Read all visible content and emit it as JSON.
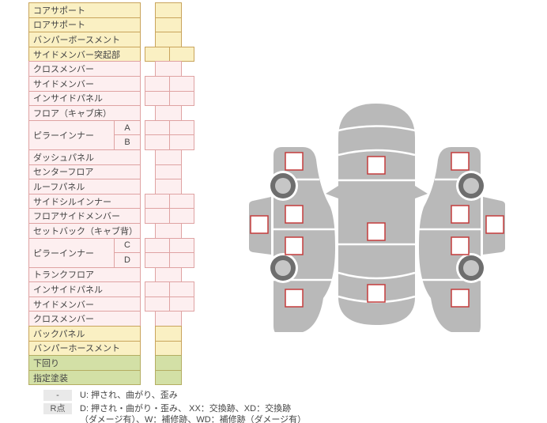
{
  "table": {
    "rows": [
      {
        "label": "コアサポート",
        "type": "yellow",
        "cells": "single"
      },
      {
        "label": "ロアサポート",
        "type": "yellow",
        "cells": "single"
      },
      {
        "label": "バンパーボースメント",
        "type": "yellow",
        "cells": "single"
      },
      {
        "label": "サイドメンバー突起部",
        "type": "yellow",
        "cells": "double"
      },
      {
        "label": "クロスメンバー",
        "type": "pink",
        "cells": "single"
      },
      {
        "label": "サイドメンバー",
        "type": "pink",
        "cells": "double"
      },
      {
        "label": "インサイドパネル",
        "type": "pink",
        "cells": "double"
      },
      {
        "label": "フロア（キャブ床）",
        "type": "pink",
        "cells": "single"
      },
      {
        "label": "ピラーインナー",
        "type": "pink",
        "cells": "double",
        "sub_rows": [
          "A",
          "B"
        ]
      },
      {
        "label": "ダッシュパネル",
        "type": "pink",
        "cells": "single"
      },
      {
        "label": "センターフロア",
        "type": "pink",
        "cells": "single"
      },
      {
        "label": "ルーフパネル",
        "type": "pink",
        "cells": "single"
      },
      {
        "label": "サイドシルインナー",
        "type": "pink",
        "cells": "double"
      },
      {
        "label": "フロアサイドメンバー",
        "type": "pink",
        "cells": "double"
      },
      {
        "label": "セットバック（キャブ背）",
        "type": "pink",
        "cells": "single"
      },
      {
        "label": "ピラーインナー",
        "type": "pink",
        "cells": "double",
        "sub_rows": [
          "C",
          "D"
        ]
      },
      {
        "label": "トランクフロア",
        "type": "pink",
        "cells": "single"
      },
      {
        "label": "インサイドパネル",
        "type": "pink",
        "cells": "double"
      },
      {
        "label": "サイドメンバー",
        "type": "pink",
        "cells": "double"
      },
      {
        "label": "クロスメンバー",
        "type": "pink",
        "cells": "single"
      },
      {
        "label": "バックパネル",
        "type": "yellow",
        "cells": "single"
      },
      {
        "label": "バンパーホースメント",
        "type": "yellow",
        "cells": "single"
      },
      {
        "label": "下回り",
        "type": "green",
        "cells": "single"
      },
      {
        "label": "指定塗装",
        "type": "green",
        "cells": "single"
      }
    ]
  },
  "legend": {
    "items": [
      {
        "badge": "-",
        "lines": [
          "U: 押され、曲がり、歪み"
        ]
      },
      {
        "badge": "R点",
        "lines": [
          "D: 押され・曲がり・歪み、 XX：交換跡、XD：交換跡",
          "（ダメージ有）、W：補修跡、WD：補修跡（ダメージ有）"
        ]
      }
    ]
  },
  "diagram": {
    "views": [
      "left-side-view",
      "top-view",
      "right-side-view"
    ],
    "point_count": 13,
    "wheel_count": 4
  },
  "colors": {
    "yellow_fill": "#faf0c3",
    "yellow_border": "#c9a45c",
    "pink_fill": "#fdeff0",
    "pink_border": "#dfa3a3",
    "green_fill": "#d3e0a6",
    "green_border": "#b4ad62",
    "car_gray": "#b9b9b9",
    "wheel_dark": "#6e6e6e",
    "wheel_light": "#c6c6c6",
    "marker_border": "#c43c3c",
    "marker_fill": "#ffffff",
    "legend_badge_bg": "#e9e9e9",
    "text": "#444444"
  }
}
